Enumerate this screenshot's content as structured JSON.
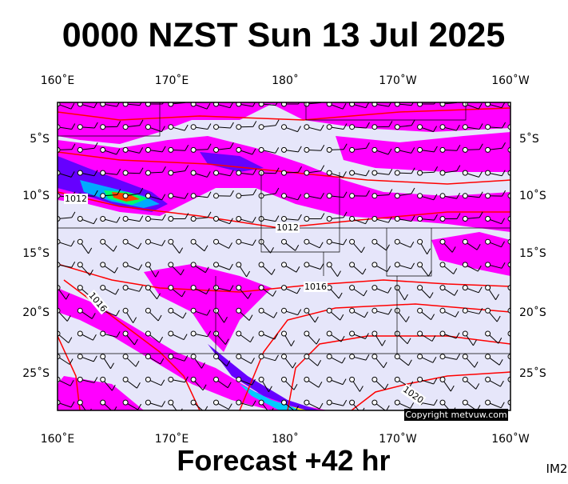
{
  "header": {
    "title": "0000 NZST Sun 13 Jul 2025"
  },
  "map": {
    "lon_labels": [
      "160˚E",
      "170˚E",
      "180˚",
      "170˚W",
      "160˚W"
    ],
    "lat_labels": [
      "5˚S",
      "10˚S",
      "15˚S",
      "20˚S",
      "25˚S"
    ],
    "isobar_labels": [
      "1012",
      "1012",
      "1016",
      "1016",
      "1020"
    ],
    "copyright": "Copyright metvuw.com"
  },
  "footer": {
    "caption": "Forecast +42 hr",
    "code": "IM2"
  }
}
